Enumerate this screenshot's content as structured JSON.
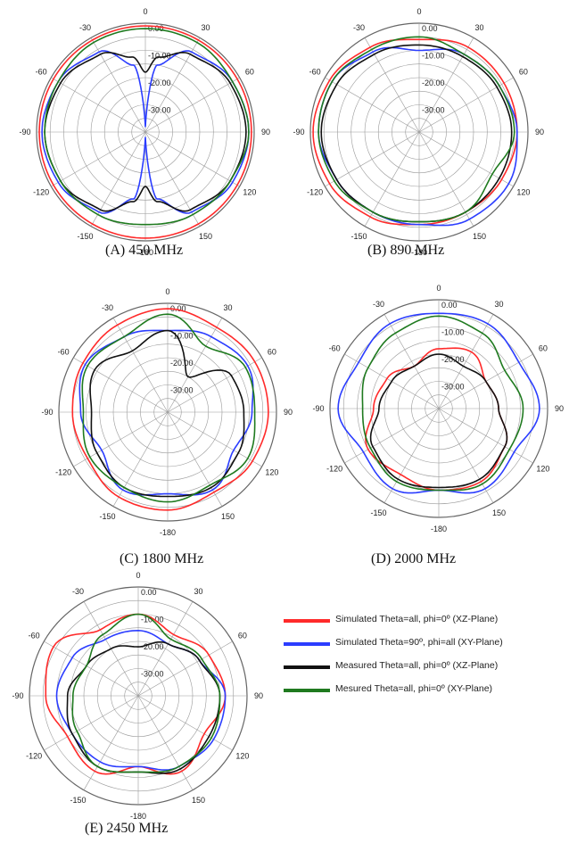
{
  "colors": {
    "sim_xz": "#ff2a2a",
    "sim_xy": "#2b3dff",
    "meas_xz": "#111111",
    "meas_xy": "#1f7a1f",
    "grid": "#9a9a9a"
  },
  "legend": [
    {
      "label": "Simulated Theta=all, phi=0º (XZ-Plane)",
      "color": "#ff2a2a"
    },
    {
      "label": "Simulated Theta=90º, phi=all (XY-Plane)",
      "color": "#2b3dff"
    },
    {
      "label": "Measured Theta=all, phi=0º (XZ-Plane)",
      "color": "#111111"
    },
    {
      "label": "Mesured Theta=all, phi=0º (XY-Plane)",
      "color": "#1f7a1f"
    }
  ],
  "chart_data": [
    {
      "type": "polar",
      "caption": "(A)  450 MHz",
      "angle_ticks": [
        "0",
        "30",
        "60",
        "90",
        "120",
        "150",
        "-180",
        "-150",
        "-120",
        "-90",
        "-60",
        "-30"
      ],
      "radial_ticks": [
        "0.00",
        "-10.00",
        "-20.00",
        "-30.00"
      ],
      "rlim": [
        -40,
        0
      ],
      "series": [
        {
          "color_key": "sim_xz",
          "angles": [
            0,
            30,
            60,
            90,
            120,
            150,
            180,
            210,
            240,
            270,
            300,
            330
          ],
          "values": [
            -1,
            -1,
            -1,
            -1,
            -1,
            -1,
            -1,
            -1,
            -1,
            -1,
            -1,
            -1
          ]
        },
        {
          "color_key": "sim_xy",
          "angles": [
            0,
            10,
            30,
            60,
            90,
            120,
            150,
            170,
            180,
            190,
            210,
            240,
            270,
            300,
            330,
            350
          ],
          "values": [
            -38,
            -15,
            -6,
            -3,
            -2,
            -3,
            -6,
            -15,
            -38,
            -15,
            -6,
            -3,
            -2,
            -3,
            -6,
            -15
          ]
        },
        {
          "color_key": "meas_xz",
          "angles": [
            0,
            10,
            30,
            60,
            90,
            120,
            150,
            170,
            180,
            190,
            210,
            240,
            270,
            300,
            330,
            350
          ],
          "values": [
            -18,
            -12,
            -7,
            -4,
            -3,
            -4,
            -7,
            -14,
            -20,
            -14,
            -7,
            -4,
            -3,
            -4,
            -7,
            -12
          ]
        },
        {
          "color_key": "meas_xy",
          "angles": [
            0,
            30,
            60,
            90,
            120,
            150,
            180,
            210,
            240,
            270,
            300,
            330
          ],
          "values": [
            -2,
            -2,
            -3,
            -2,
            -4,
            -5,
            -6,
            -5,
            -4,
            -3,
            -3,
            -2
          ]
        }
      ]
    },
    {
      "type": "polar",
      "caption": "(B) 890 MHz",
      "angle_ticks": [
        "0",
        "30",
        "60",
        "90",
        "120",
        "150",
        "-180",
        "-150",
        "-120",
        "-90",
        "-60",
        "-30"
      ],
      "radial_ticks": [
        "0.00",
        "-10.00",
        "-20.00",
        "-30.00"
      ],
      "rlim": [
        -40,
        0
      ],
      "series": [
        {
          "color_key": "sim_xz",
          "angles": [
            0,
            30,
            60,
            90,
            120,
            150,
            180,
            210,
            240,
            270,
            300,
            330
          ],
          "values": [
            -6,
            -4,
            -4,
            -4,
            -5,
            -6,
            -6,
            -4,
            -2,
            -1,
            -2,
            -4
          ]
        },
        {
          "color_key": "sim_xy",
          "angles": [
            0,
            30,
            60,
            90,
            120,
            150,
            180,
            210,
            240,
            270,
            300,
            330
          ],
          "values": [
            -10,
            -7,
            -6,
            -4,
            -2,
            -3,
            -6,
            -6,
            -5,
            -3,
            -3,
            -6
          ]
        },
        {
          "color_key": "meas_xz",
          "angles": [
            0,
            30,
            60,
            90,
            120,
            150,
            180,
            210,
            240,
            270,
            300,
            330
          ],
          "values": [
            -8,
            -8,
            -7,
            -6,
            -6,
            -6,
            -7,
            -6,
            -5,
            -4,
            -5,
            -7
          ]
        },
        {
          "color_key": "meas_xy",
          "angles": [
            0,
            30,
            60,
            90,
            120,
            150,
            180,
            210,
            240,
            270,
            300,
            330
          ],
          "values": [
            -5,
            -7,
            -6,
            -5,
            -9,
            -6,
            -7,
            -6,
            -4,
            -3,
            -3,
            -5
          ]
        }
      ]
    },
    {
      "type": "polar",
      "caption": "(C)  1800 MHz",
      "angle_ticks": [
        "0",
        "30",
        "60",
        "90",
        "120",
        "150",
        "-180",
        "-150",
        "-120",
        "-90",
        "-60",
        "-30"
      ],
      "radial_ticks": [
        "0.00",
        "-10.00",
        "-20.00",
        "-30.00"
      ],
      "rlim": [
        -40,
        0
      ],
      "series": [
        {
          "color_key": "sim_xz",
          "angles": [
            0,
            30,
            60,
            90,
            120,
            150,
            180,
            210,
            240,
            270,
            300,
            330
          ],
          "values": [
            -2,
            -4,
            -3,
            -3,
            -4,
            -6,
            -4,
            -4,
            -6,
            -5,
            -4,
            -3
          ]
        },
        {
          "color_key": "sim_xy",
          "angles": [
            0,
            30,
            60,
            90,
            120,
            150,
            180,
            210,
            240,
            270,
            300,
            330
          ],
          "values": [
            -10,
            -8,
            -6,
            -9,
            -12,
            -7,
            -10,
            -7,
            -12,
            -8,
            -5,
            -8
          ]
        },
        {
          "color_key": "meas_xz",
          "angles": [
            0,
            30,
            60,
            90,
            120,
            150,
            180,
            210,
            240,
            270,
            300,
            330
          ],
          "values": [
            -10,
            -25,
            -13,
            -12,
            -10,
            -8,
            -9,
            -8,
            -10,
            -12,
            -9,
            -14
          ]
        },
        {
          "color_key": "meas_xy",
          "angles": [
            0,
            30,
            60,
            90,
            120,
            150,
            180,
            210,
            240,
            270,
            300,
            330
          ],
          "values": [
            -4,
            -12,
            -7,
            -8,
            -6,
            -9,
            -7,
            -8,
            -7,
            -9,
            -6,
            -8
          ]
        }
      ]
    },
    {
      "type": "polar",
      "caption": "(D)   2000 MHz",
      "angle_ticks": [
        "0",
        "30",
        "60",
        "90",
        "120",
        "150",
        "-180",
        "-150",
        "-120",
        "-90",
        "-60",
        "-30"
      ],
      "radial_ticks": [
        "0.00",
        "-10.00",
        "-20.00",
        "-30.00"
      ],
      "rlim": [
        -40,
        0
      ],
      "series": [
        {
          "color_key": "sim_xz",
          "angles": [
            0,
            30,
            60,
            90,
            120,
            150,
            180,
            210,
            240,
            270,
            300,
            330
          ],
          "values": [
            -18,
            -16,
            -20,
            -18,
            -12,
            -9,
            -10,
            -12,
            -10,
            -16,
            -18,
            -22
          ]
        },
        {
          "color_key": "sim_xy",
          "angles": [
            0,
            30,
            60,
            90,
            120,
            150,
            180,
            210,
            240,
            270,
            300,
            330
          ],
          "values": [
            -5,
            -4,
            -6,
            -3,
            -8,
            -6,
            -10,
            -6,
            -8,
            -3,
            -6,
            -4
          ]
        },
        {
          "color_key": "meas_xz",
          "angles": [
            0,
            30,
            60,
            90,
            120,
            150,
            180,
            210,
            240,
            270,
            300,
            330
          ],
          "values": [
            -20,
            -22,
            -20,
            -18,
            -12,
            -10,
            -11,
            -10,
            -12,
            -18,
            -20,
            -22
          ]
        },
        {
          "color_key": "meas_xy",
          "angles": [
            0,
            30,
            60,
            90,
            120,
            150,
            180,
            210,
            240,
            270,
            300,
            330
          ],
          "values": [
            -6,
            -8,
            -12,
            -9,
            -10,
            -8,
            -10,
            -9,
            -11,
            -12,
            -10,
            -8
          ]
        }
      ]
    },
    {
      "type": "polar",
      "caption": "(E)   2450 MHz",
      "angle_ticks": [
        "0",
        "30",
        "60",
        "90",
        "120",
        "150",
        "-180",
        "-150",
        "-120",
        "-90",
        "-60",
        "-30"
      ],
      "radial_ticks": [
        "0.00",
        "-10.00",
        "-20.00",
        "-30.00"
      ],
      "rlim": [
        -40,
        0
      ],
      "series": [
        {
          "color_key": "sim_xz",
          "angles": [
            0,
            30,
            60,
            90,
            120,
            150,
            180,
            210,
            240,
            270,
            300,
            330
          ],
          "values": [
            -10,
            -14,
            -10,
            -8,
            -12,
            -8,
            -14,
            -8,
            -10,
            -6,
            -4,
            -12
          ]
        },
        {
          "color_key": "sim_xy",
          "angles": [
            0,
            30,
            60,
            90,
            120,
            150,
            180,
            210,
            240,
            270,
            300,
            330
          ],
          "values": [
            -16,
            -18,
            -14,
            -8,
            -8,
            -10,
            -14,
            -12,
            -12,
            -10,
            -12,
            -16
          ]
        },
        {
          "color_key": "meas_xz",
          "angles": [
            0,
            30,
            60,
            90,
            120,
            150,
            180,
            210,
            240,
            270,
            300,
            330
          ],
          "values": [
            -22,
            -18,
            -14,
            -10,
            -10,
            -9,
            -12,
            -10,
            -12,
            -14,
            -18,
            -20
          ]
        },
        {
          "color_key": "meas_xy",
          "angles": [
            0,
            30,
            60,
            90,
            120,
            150,
            180,
            210,
            240,
            270,
            300,
            330
          ],
          "values": [
            -10,
            -16,
            -13,
            -10,
            -9,
            -10,
            -12,
            -10,
            -14,
            -16,
            -18,
            -14
          ]
        }
      ]
    }
  ]
}
